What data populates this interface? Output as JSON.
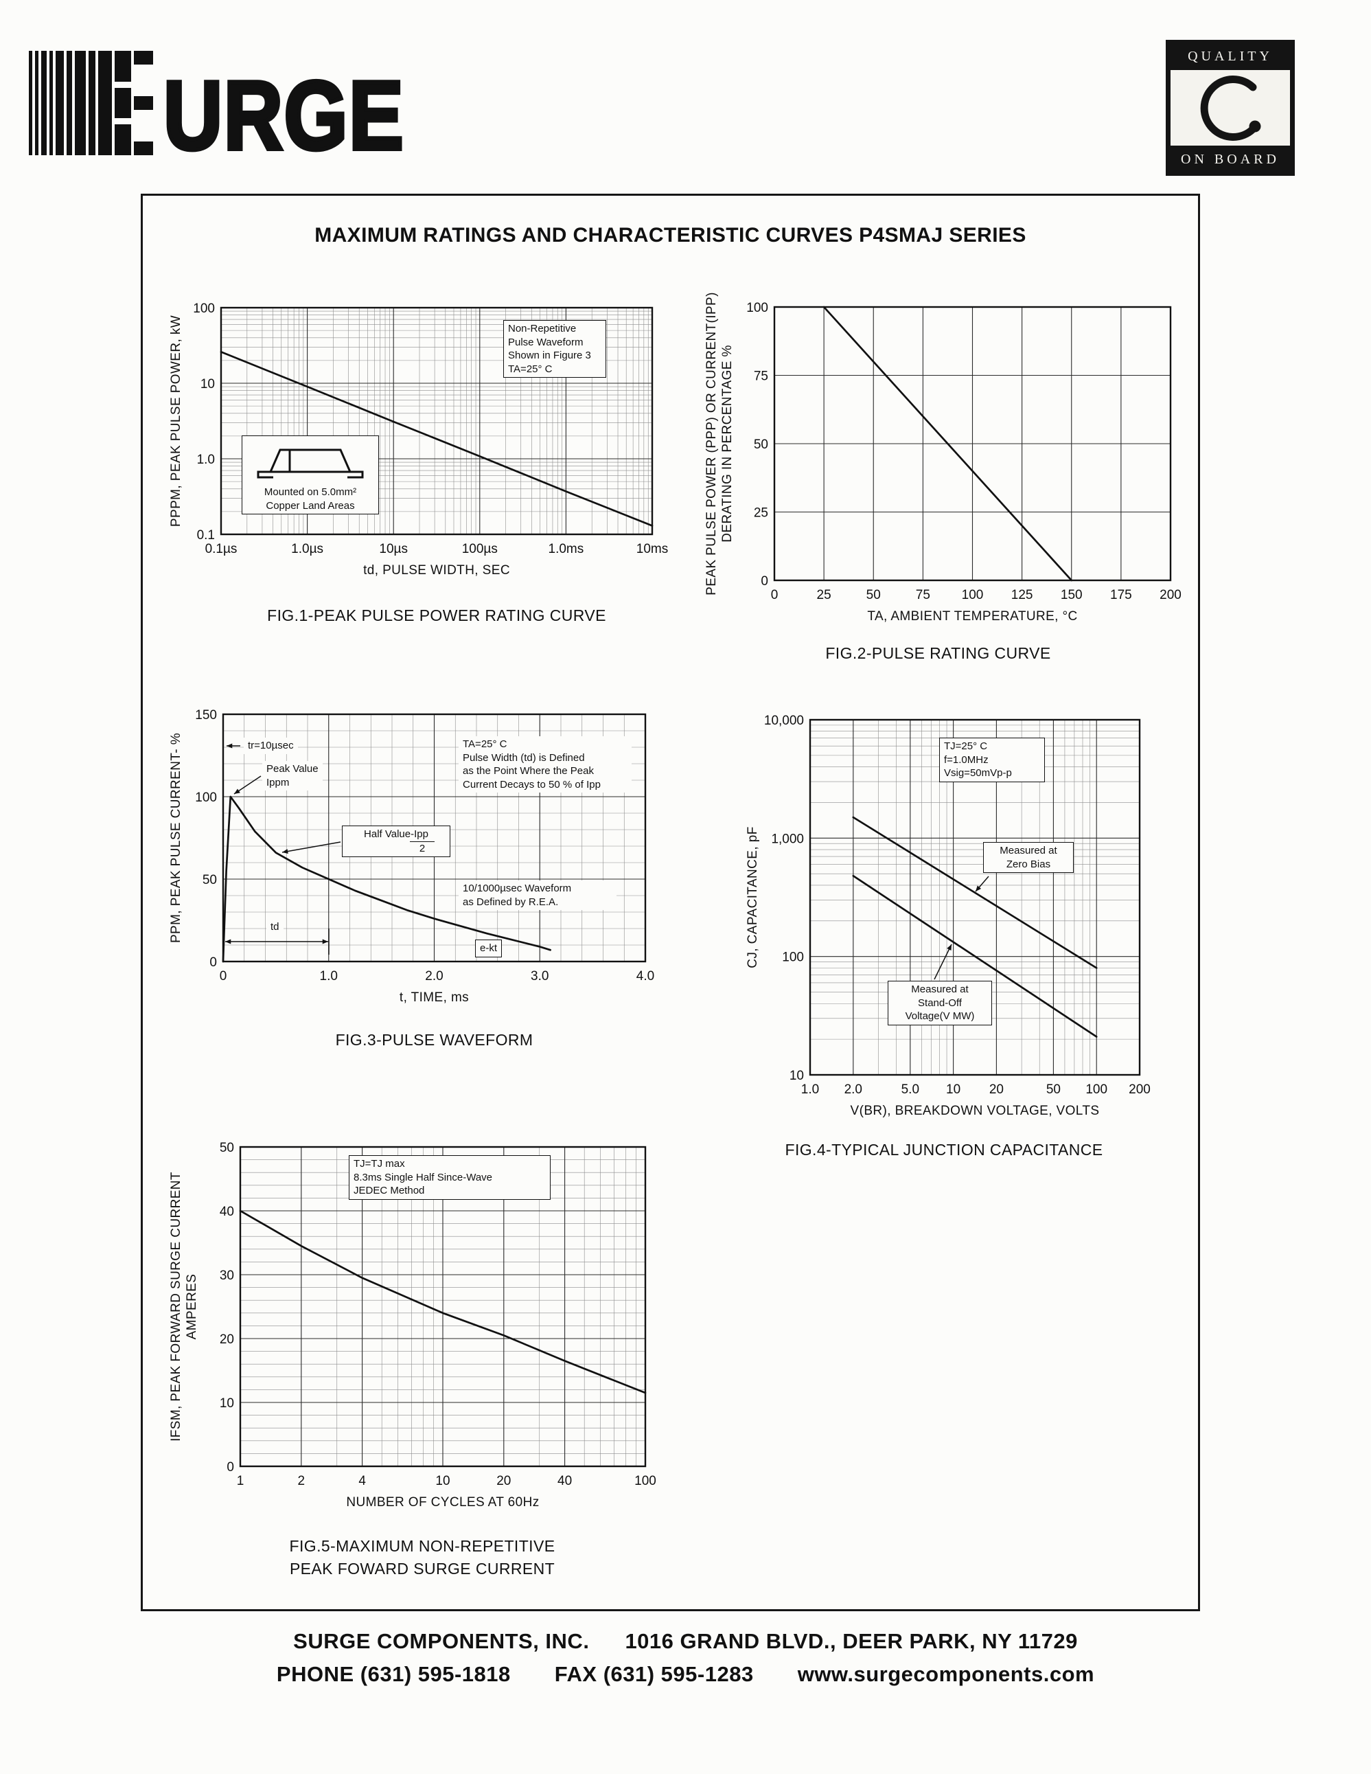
{
  "page": {
    "brand": {
      "text": "URGE"
    },
    "quality_logo": {
      "top": "QUALITY",
      "bottom": "ON BOARD"
    },
    "title": "MAXIMUM RATINGS AND CHARACTERISTIC CURVES P4SMAJ SERIES",
    "footer": {
      "company": "SURGE COMPONENTS, INC.",
      "address": "1016 GRAND BLVD., DEER PARK, NY  11729",
      "phone_label": "PHONE",
      "phone": "(631) 595-1818",
      "fax_label": "FAX",
      "fax": "(631) 595-1283",
      "website": "www.surgecomponents.com"
    }
  },
  "chart_data": [
    {
      "id": "fig1",
      "type": "line",
      "caption": "FIG.1-PEAK PULSE POWER RATING CURVE",
      "xlabel": "td, PULSE WIDTH, SEC",
      "ylabel": "PPPM, PEAK PULSE POWER, kW",
      "x_scale": "log",
      "y_scale": "log",
      "xlim": [
        1e-07,
        0.01
      ],
      "ylim": [
        0.1,
        100
      ],
      "x_ticks": [
        1e-07,
        1e-06,
        1e-05,
        0.0001,
        0.001,
        0.01
      ],
      "x_tick_labels": [
        "0.1µs",
        "1.0µs",
        "10µs",
        "100µs",
        "1.0ms",
        "10ms"
      ],
      "y_ticks": [
        0.1,
        1,
        10,
        100
      ],
      "y_tick_labels": [
        "0.1",
        "1.0",
        "10",
        "100"
      ],
      "grid": "log-log with minor decade lines",
      "series": [
        {
          "name": "peak-pulse-power",
          "x": [
            1e-07,
            1e-06,
            1e-05,
            0.0001,
            0.001,
            0.01
          ],
          "y": [
            26,
            9.0,
            3.1,
            1.08,
            0.37,
            0.13
          ]
        }
      ],
      "annotations": [
        {
          "name": "waveform-note",
          "text": "Non-Repetitive\nPulse Waveform\nShown in Figure 3\nTA=25° C"
        },
        {
          "name": "mounting-note",
          "text": "Mounted on 5.0mm²\nCopper Land Areas"
        }
      ]
    },
    {
      "id": "fig2",
      "type": "line",
      "caption": "FIG.2-PULSE RATING CURVE",
      "xlabel": "TA, AMBIENT  TEMPERATURE, °C",
      "ylabel": "PEAK PULSE POWER (PPP) OR CURRENT(IPP)\nDERATING IN PERCENTAGE %",
      "x_scale": "linear",
      "y_scale": "linear",
      "xlim": [
        0,
        200
      ],
      "ylim": [
        0,
        100
      ],
      "x_ticks": [
        0,
        25,
        50,
        75,
        100,
        125,
        150,
        175,
        200
      ],
      "y_ticks": [
        0,
        25,
        50,
        75,
        100
      ],
      "grid": "major 25-unit squares",
      "series": [
        {
          "name": "derating",
          "x": [
            25,
            150
          ],
          "y": [
            100,
            0
          ]
        }
      ],
      "annotations": []
    },
    {
      "id": "fig3",
      "type": "line",
      "caption": "FIG.3-PULSE WAVEFORM",
      "xlabel": "t, TIME, ms",
      "ylabel": "PPM, PEAK PULSE CURRENT- %",
      "x_scale": "linear",
      "y_scale": "linear",
      "xlim": [
        0,
        4
      ],
      "ylim": [
        0,
        150
      ],
      "x_ticks": [
        0,
        1,
        2,
        3,
        4
      ],
      "x_tick_labels": [
        "0",
        "1.0",
        "2.0",
        "3.0",
        "4.0"
      ],
      "y_ticks": [
        0,
        50,
        100,
        150
      ],
      "grid": "minor x 0.2 / minor y 10",
      "series": [
        {
          "name": "10/1000µsec pulse",
          "x": [
            0,
            0.03,
            0.07,
            0.15,
            0.3,
            0.5,
            0.75,
            1.0,
            1.25,
            1.5,
            1.75,
            2.0,
            2.5,
            3.0,
            3.1
          ],
          "y": [
            0,
            55,
            100,
            93,
            79,
            66,
            57,
            50,
            43,
            37,
            31,
            26,
            17,
            9,
            7
          ]
        }
      ],
      "annotations": [
        {
          "name": "rise-time-note",
          "text": "tr=10µsec"
        },
        {
          "name": "peak-value-note",
          "text": "Peak Value\nIppm"
        },
        {
          "name": "half-value-note",
          "text": "Half Value-Ipp",
          "denominator": "2"
        },
        {
          "name": "pulse-width-definition",
          "text": "TA=25° C\nPulse Width (td) is Defined\nas the Point Where the Peak\nCurrent Decays to 50 % of Ipp"
        },
        {
          "name": "rea-waveform-note",
          "text": "10/1000µsec Waveform\nas Defined by R.E.A."
        },
        {
          "name": "td-label",
          "text": "td"
        },
        {
          "name": "exp-decay-label",
          "text": "e-kt"
        }
      ]
    },
    {
      "id": "fig4",
      "type": "line",
      "caption": "FIG.4-TYPICAL JUNCTION CAPACITANCE",
      "xlabel": "V(BR), BREAKDOWN VOLTAGE, VOLTS",
      "ylabel": "CJ, CAPACITANCE, pF",
      "x_scale": "log",
      "y_scale": "log",
      "xlim": [
        1,
        200
      ],
      "ylim": [
        10,
        10000
      ],
      "x_ticks": [
        1,
        2,
        5,
        10,
        20,
        50,
        100,
        200
      ],
      "x_tick_labels": [
        "1.0",
        "2.0",
        "5.0",
        "10",
        "20",
        "50",
        "100",
        "200"
      ],
      "y_ticks": [
        10,
        100,
        1000,
        10000
      ],
      "y_tick_labels": [
        "10",
        "100",
        "1,000",
        "10,000"
      ],
      "grid": "log-log with minor decade lines",
      "series": [
        {
          "name": "Measured at Zero Bias",
          "x": [
            2,
            100
          ],
          "y": [
            1500,
            80
          ]
        },
        {
          "name": "Measured at Stand-Off Voltage",
          "x": [
            2,
            100
          ],
          "y": [
            480,
            21
          ]
        }
      ],
      "annotations": [
        {
          "name": "test-conditions-note",
          "text": "TJ=25° C\nf=1.0MHz\nVsig=50mVp-p"
        },
        {
          "name": "zero-bias-label",
          "text": "Measured at\nZero Bias"
        },
        {
          "name": "standoff-label",
          "text": "Measured at\nStand-Off\nVoltage(V MW)"
        }
      ]
    },
    {
      "id": "fig5",
      "type": "line",
      "caption": "FIG.5-MAXIMUM NON-REPETITIVE\nPEAK FOWARD SURGE CURRENT",
      "xlabel": "NUMBER  OF  CYCLES  AT  60Hz",
      "ylabel": "IFSM, PEAK FORWARD SURGE CURRENT\nAMPERES",
      "x_scale": "log",
      "y_scale": "linear",
      "xlim": [
        1,
        100
      ],
      "ylim": [
        0,
        50
      ],
      "x_ticks": [
        1,
        2,
        4,
        10,
        20,
        40,
        100
      ],
      "x_tick_labels": [
        "1",
        "2",
        "4",
        "10",
        "20",
        "40",
        "100"
      ],
      "y_ticks": [
        0,
        10,
        20,
        30,
        40,
        50
      ],
      "grid": "log x with minors / minor y 2",
      "series": [
        {
          "name": "IFSM",
          "x": [
            1,
            2,
            4,
            10,
            20,
            40,
            100
          ],
          "y": [
            40,
            34.5,
            29.5,
            24,
            20.5,
            16.5,
            11.5
          ]
        }
      ],
      "annotations": [
        {
          "name": "test-conditions-note",
          "text": "TJ=TJ max\n8.3ms Single Half Since-Wave\nJEDEC Method"
        }
      ]
    }
  ]
}
